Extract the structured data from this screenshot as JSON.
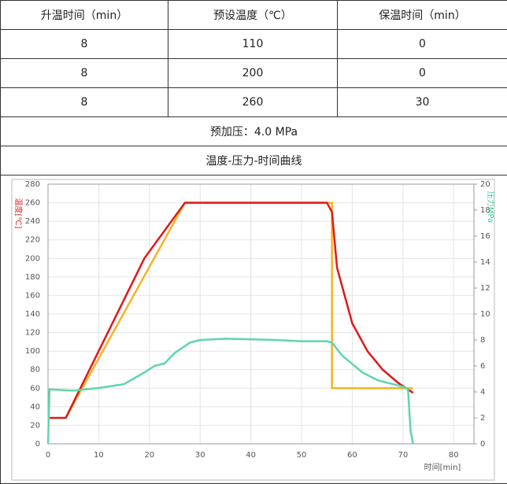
{
  "table": {
    "header": [
      "升温时间（min）",
      "预设温度（℃）",
      "保温时间（min）"
    ],
    "rows": [
      [
        "8",
        "110",
        "0"
      ],
      [
        "8",
        "200",
        "0"
      ],
      [
        "8",
        "260",
        "30"
      ]
    ],
    "preload": "预加压：4.0 MPa",
    "chart_title": "温度-压力-时间曲线"
  },
  "chart_data": {
    "type": "line",
    "y_label": "温度[℃]",
    "y2_label": "压力MPa",
    "x_label": "时间[min]",
    "xlim": [
      0,
      84
    ],
    "xticks": [
      0,
      10,
      20,
      30,
      40,
      50,
      60,
      70,
      80
    ],
    "ylim": [
      0,
      280
    ],
    "yticks": [
      0,
      20,
      40,
      60,
      80,
      100,
      120,
      140,
      160,
      180,
      200,
      220,
      240,
      260,
      280
    ],
    "y2lim": [
      0,
      20
    ],
    "y2ticks": [
      0,
      2,
      4,
      6,
      8,
      10,
      12,
      14,
      16,
      18,
      20
    ],
    "grid": true,
    "y_color": "#e02020",
    "y2_color": "#3ccf9a",
    "series": [
      {
        "color": "#f5b325",
        "x": [
          3.5,
          27,
          56,
          56,
          72
        ],
        "values": [
          28,
          260,
          260,
          60,
          60
        ]
      },
      {
        "color": "#e01818",
        "x": [
          0,
          3.5,
          19,
          27,
          55,
          56,
          57,
          60,
          63,
          66,
          69,
          72
        ],
        "values": [
          28,
          28,
          200,
          260,
          260,
          250,
          190,
          130,
          100,
          80,
          66,
          55
        ]
      },
      {
        "color": "#5fd6a8",
        "axis": "y2",
        "x": [
          0,
          0.3,
          5,
          10,
          15,
          19,
          21,
          23,
          25,
          28,
          30,
          35,
          45,
          50,
          55,
          56,
          58,
          62,
          65,
          68,
          70,
          71,
          71.5,
          72
        ],
        "values": [
          0,
          4.2,
          4.1,
          4.3,
          4.6,
          5.5,
          6,
          6.2,
          7,
          7.8,
          8,
          8.1,
          8,
          7.9,
          7.9,
          7.8,
          6.8,
          5.5,
          4.9,
          4.6,
          4.4,
          4.2,
          1,
          0
        ]
      }
    ]
  }
}
